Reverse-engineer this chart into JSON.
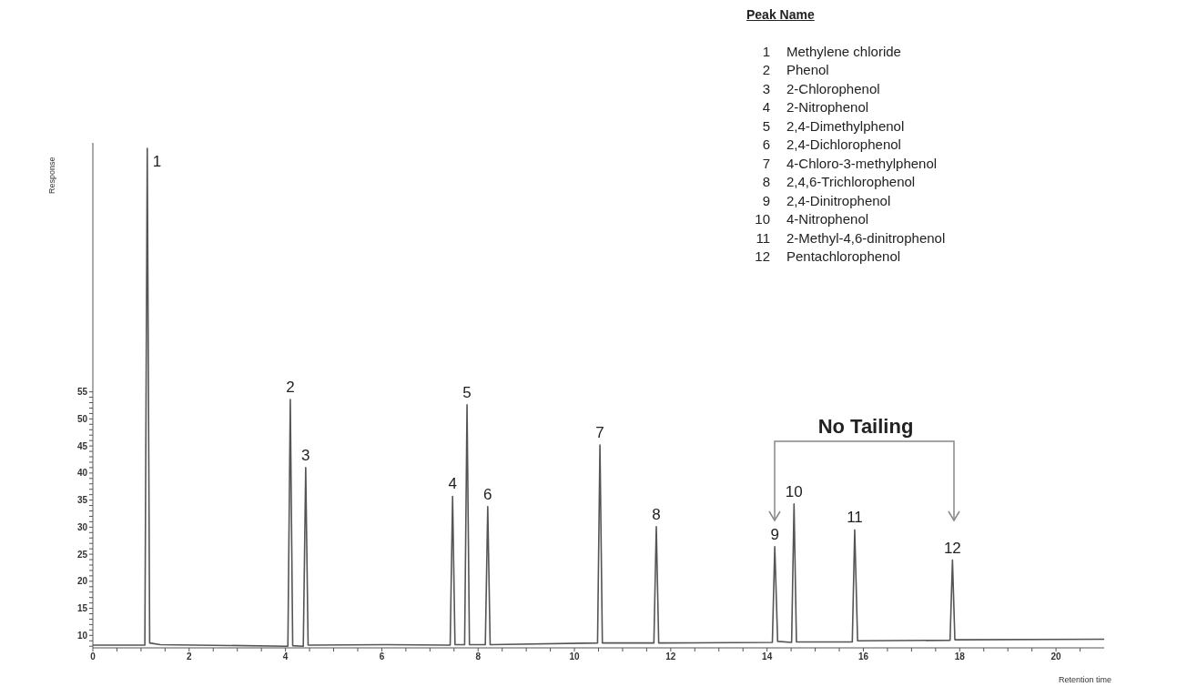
{
  "chart_data": {
    "type": "line",
    "xlabel": "Retention time",
    "ylabel": "Response",
    "legend_title": "Peak Name",
    "xlim": [
      0,
      21
    ],
    "ylim": [
      7.7,
      101
    ],
    "xticks": [
      0,
      {
        "value": 0.5,
        "label": null
      },
      {
        "value": 1,
        "label": null
      },
      {
        "value": 1.5,
        "label": null
      },
      2,
      {
        "value": 2.5,
        "label": null
      },
      {
        "value": 3,
        "label": null
      },
      {
        "value": 3.5,
        "label": null
      },
      4,
      {
        "value": 4.5,
        "label": null
      },
      {
        "value": 5,
        "label": null
      },
      {
        "value": 5.5,
        "label": null
      },
      6,
      {
        "value": 6.5,
        "label": null
      },
      {
        "value": 7,
        "label": null
      },
      {
        "value": 7.5,
        "label": null
      },
      8,
      {
        "value": 8.5,
        "label": null
      },
      {
        "value": 9,
        "label": null
      },
      {
        "value": 9.5,
        "label": null
      },
      10,
      {
        "value": 10.5,
        "label": null
      },
      {
        "value": 11,
        "label": null
      },
      {
        "value": 11.5,
        "label": null
      },
      12,
      {
        "value": 12.5,
        "label": null
      },
      {
        "value": 13,
        "label": null
      },
      {
        "value": 13.5,
        "label": null
      },
      14,
      {
        "value": 14.5,
        "label": null
      },
      {
        "value": 15,
        "label": null
      },
      {
        "value": 15.5,
        "label": null
      },
      16,
      {
        "value": 16.5,
        "label": null
      },
      {
        "value": 17,
        "label": null
      },
      {
        "value": 17.5,
        "label": null
      },
      18,
      {
        "value": 18.5,
        "label": null
      },
      {
        "value": 19,
        "label": null
      },
      {
        "value": 19.5,
        "label": null
      },
      20,
      {
        "value": 20.5,
        "label": null
      }
    ],
    "yticks": [
      {
        "value": 8,
        "label": null
      },
      {
        "value": 9,
        "label": null
      },
      10,
      {
        "value": 11,
        "label": null
      },
      {
        "value": 12,
        "label": null
      },
      {
        "value": 13,
        "label": null
      },
      {
        "value": 14,
        "label": null
      },
      15,
      {
        "value": 16,
        "label": null
      },
      {
        "value": 17,
        "label": null
      },
      {
        "value": 18,
        "label": null
      },
      {
        "value": 19,
        "label": null
      },
      20,
      {
        "value": 21,
        "label": null
      },
      {
        "value": 22,
        "label": null
      },
      {
        "value": 23,
        "label": null
      },
      {
        "value": 24,
        "label": null
      },
      25,
      {
        "value": 26,
        "label": null
      },
      {
        "value": 27,
        "label": null
      },
      {
        "value": 28,
        "label": null
      },
      {
        "value": 29,
        "label": null
      },
      30,
      {
        "value": 31,
        "label": null
      },
      {
        "value": 32,
        "label": null
      },
      {
        "value": 33,
        "label": null
      },
      {
        "value": 34,
        "label": null
      },
      35,
      {
        "value": 36,
        "label": null
      },
      {
        "value": 37,
        "label": null
      },
      {
        "value": 38,
        "label": null
      },
      {
        "value": 39,
        "label": null
      },
      40,
      {
        "value": 41,
        "label": null
      },
      {
        "value": 42,
        "label": null
      },
      {
        "value": 43,
        "label": null
      },
      {
        "value": 44,
        "label": null
      },
      45,
      {
        "value": 46,
        "label": null
      },
      {
        "value": 47,
        "label": null
      },
      {
        "value": 48,
        "label": null
      },
      {
        "value": 49,
        "label": null
      },
      50,
      {
        "value": 51,
        "label": null
      },
      {
        "value": 52,
        "label": null
      },
      {
        "value": 53,
        "label": null
      },
      {
        "value": 54,
        "label": null
      },
      55
    ],
    "marker": "none",
    "line_style": "solid",
    "x": [
      0,
      1.08,
      1.13,
      1.18,
      1.4,
      4.05,
      4.1,
      4.15,
      4.37,
      4.42,
      4.47,
      6.1,
      7.42,
      7.47,
      7.52,
      7.72,
      7.77,
      7.82,
      8.15,
      8.2,
      8.25,
      10.48,
      10.53,
      10.58,
      11.65,
      11.7,
      11.75,
      14.11,
      14.16,
      14.22,
      14.51,
      14.56,
      14.61,
      15.77,
      15.82,
      15.88,
      17.8,
      17.85,
      17.9,
      21
    ],
    "series": [
      {
        "color": "#555555",
        "values": [
          8.2,
          8.2,
          100,
          8.6,
          8.3,
          8.0,
          53.6,
          8.1,
          8.0,
          41.0,
          8.2,
          8.3,
          8.2,
          35.7,
          8.3,
          8.3,
          52.6,
          8.3,
          8.3,
          33.8,
          8.3,
          8.6,
          45.2,
          8.6,
          8.6,
          30.1,
          8.6,
          8.7,
          26.4,
          8.9,
          8.7,
          34.3,
          8.8,
          8.8,
          29.5,
          9.0,
          9.1,
          23.9,
          9.2,
          9.3
        ]
      }
    ],
    "annotations": [
      {
        "text": "1",
        "x": 1.13,
        "y": 100
      },
      {
        "text": "2",
        "x": 4.1,
        "y": 53.6
      },
      {
        "text": "3",
        "x": 4.42,
        "y": 41.0
      },
      {
        "text": "4",
        "x": 7.47,
        "y": 35.7
      },
      {
        "text": "5",
        "x": 7.77,
        "y": 52.6
      },
      {
        "text": "6",
        "x": 8.2,
        "y": 33.8
      },
      {
        "text": "7",
        "x": 10.53,
        "y": 45.2
      },
      {
        "text": "8",
        "x": 11.7,
        "y": 30.1
      },
      {
        "text": "9",
        "x": 14.16,
        "y": 26.4
      },
      {
        "text": "10",
        "x": 14.56,
        "y": 34.3
      },
      {
        "text": "11",
        "x": 15.82,
        "y": 29.5
      },
      {
        "text": "12",
        "x": 17.85,
        "y": 23.9
      },
      "No Tailing",
      "1 Methylene chloride",
      "2 Phenol",
      "3 2-Chlorophenol",
      "4 2-Nitrophenol",
      "5 2,4-Dimethylphenol",
      "6 2,4-Dichlorophenol",
      "7 4-Chloro-3-methylphenol",
      "8 2,4,6-Trichlorophenol",
      "9 2,4-Dinitrophenol",
      "10 4-Nitrophenol",
      "11 2-Methyl-4,6-dinitrophenol",
      "12 Pentachlorophenol"
    ]
  }
}
